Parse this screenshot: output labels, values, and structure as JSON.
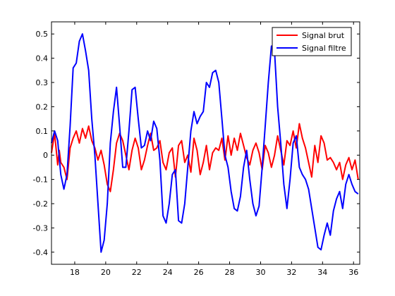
{
  "chart_data": {
    "type": "line",
    "title": "",
    "xlabel": "",
    "ylabel": "",
    "xlim": [
      16.5,
      36.4
    ],
    "ylim": [
      -0.45,
      0.55
    ],
    "xticks": [
      18,
      20,
      22,
      24,
      26,
      28,
      30,
      32,
      34,
      36
    ],
    "yticks": [
      0.5,
      0.4,
      0.3,
      0.2,
      0.1,
      0,
      -0.1,
      -0.2,
      -0.3,
      -0.4
    ],
    "xtick_labels": [
      "18",
      "20",
      "22",
      "24",
      "26",
      "28",
      "30",
      "32",
      "34",
      "36"
    ],
    "ytick_labels": [
      "0.5",
      "0.4",
      "0.3",
      "0.2",
      "0.1",
      "0",
      "-0.1",
      "-0.2",
      "-0.3",
      "-0.4"
    ],
    "grid": false,
    "legend_position": "top-right",
    "series": [
      {
        "name": "Signal brut",
        "color": "#ff0000",
        "x": [
          16.5,
          16.7,
          16.9,
          17.0,
          17.1,
          17.3,
          17.5,
          17.7,
          17.9,
          18.1,
          18.3,
          18.5,
          18.7,
          18.9,
          19.1,
          19.3,
          19.5,
          19.7,
          19.9,
          20.1,
          20.3,
          20.5,
          20.7,
          20.9,
          21.1,
          21.3,
          21.5,
          21.7,
          21.9,
          22.1,
          22.3,
          22.5,
          22.7,
          22.9,
          23.1,
          23.3,
          23.5,
          23.7,
          23.9,
          24.1,
          24.3,
          24.5,
          24.7,
          24.9,
          25.1,
          25.3,
          25.5,
          25.7,
          25.9,
          26.1,
          26.3,
          26.5,
          26.7,
          26.9,
          27.1,
          27.3,
          27.5,
          27.7,
          27.9,
          28.1,
          28.3,
          28.5,
          28.7,
          28.9,
          29.1,
          29.3,
          29.5,
          29.7,
          29.9,
          30.1,
          30.3,
          30.5,
          30.7,
          30.9,
          31.1,
          31.3,
          31.5,
          31.7,
          31.9,
          32.1,
          32.3,
          32.5,
          32.7,
          32.9,
          33.1,
          33.3,
          33.5,
          33.7,
          33.9,
          34.1,
          34.3,
          34.5,
          34.7,
          34.9,
          35.1,
          35.3,
          35.5,
          35.7,
          35.9,
          36.1,
          36.3
        ],
        "values": [
          0.01,
          0.09,
          -0.04,
          0.02,
          -0.03,
          -0.05,
          -0.1,
          0.03,
          0.07,
          0.1,
          0.05,
          0.11,
          0.07,
          0.12,
          0.06,
          0.03,
          -0.02,
          0.02,
          -0.04,
          -0.12,
          -0.15,
          -0.06,
          0.05,
          0.09,
          0.06,
          0.0,
          -0.06,
          0.02,
          0.07,
          0.03,
          -0.06,
          -0.02,
          0.04,
          0.09,
          0.02,
          0.03,
          0.06,
          -0.03,
          -0.06,
          0.01,
          0.03,
          -0.09,
          0.04,
          0.06,
          -0.03,
          0.0,
          -0.07,
          0.07,
          0.02,
          -0.08,
          -0.03,
          0.04,
          -0.06,
          0.01,
          0.03,
          0.02,
          0.07,
          -0.02,
          0.08,
          0.0,
          0.07,
          0.02,
          0.09,
          0.04,
          -0.01,
          -0.04,
          0.02,
          0.05,
          0.01,
          -0.06,
          0.04,
          0.01,
          -0.05,
          0.0,
          0.08,
          0.02,
          -0.04,
          0.06,
          0.04,
          0.1,
          0.03,
          0.13,
          0.07,
          0.03,
          -0.03,
          -0.09,
          0.04,
          -0.03,
          0.08,
          0.05,
          -0.02,
          -0.01,
          -0.03,
          -0.06,
          -0.03,
          -0.1,
          -0.04,
          -0.01,
          -0.06,
          -0.02,
          -0.1
        ]
      },
      {
        "name": "Signal filtre",
        "color": "#0000ff",
        "x": [
          16.5,
          16.7,
          16.9,
          17.1,
          17.3,
          17.5,
          17.7,
          17.9,
          18.1,
          18.3,
          18.5,
          18.7,
          18.9,
          19.1,
          19.3,
          19.5,
          19.7,
          19.9,
          20.1,
          20.3,
          20.5,
          20.7,
          20.9,
          21.1,
          21.3,
          21.5,
          21.7,
          21.9,
          22.1,
          22.3,
          22.5,
          22.7,
          22.9,
          23.1,
          23.3,
          23.5,
          23.7,
          23.9,
          24.1,
          24.3,
          24.5,
          24.7,
          24.9,
          25.1,
          25.3,
          25.5,
          25.7,
          25.9,
          26.1,
          26.3,
          26.5,
          26.7,
          26.9,
          27.1,
          27.3,
          27.5,
          27.7,
          27.9,
          28.1,
          28.3,
          28.5,
          28.7,
          28.9,
          29.1,
          29.3,
          29.5,
          29.7,
          29.9,
          30.1,
          30.3,
          30.5,
          30.7,
          30.9,
          31.1,
          31.3,
          31.5,
          31.7,
          31.9,
          32.1,
          32.3,
          32.5,
          32.7,
          32.9,
          33.1,
          33.3,
          33.5,
          33.7,
          33.9,
          34.1,
          34.3,
          34.5,
          34.7,
          34.9,
          35.1,
          35.3,
          35.5,
          35.7,
          35.9,
          36.1,
          36.3
        ],
        "values": [
          0.05,
          0.1,
          0.06,
          -0.08,
          -0.14,
          -0.08,
          0.12,
          0.36,
          0.38,
          0.47,
          0.5,
          0.43,
          0.35,
          0.15,
          0.0,
          -0.2,
          -0.4,
          -0.35,
          -0.2,
          0.05,
          0.18,
          0.28,
          0.12,
          -0.05,
          -0.05,
          0.1,
          0.27,
          0.28,
          0.15,
          0.03,
          0.04,
          0.1,
          0.06,
          0.14,
          0.11,
          -0.02,
          -0.25,
          -0.28,
          -0.2,
          -0.08,
          -0.06,
          -0.27,
          -0.28,
          -0.2,
          -0.05,
          0.1,
          0.18,
          0.13,
          0.16,
          0.18,
          0.3,
          0.28,
          0.34,
          0.35,
          0.3,
          0.15,
          0.0,
          -0.05,
          -0.15,
          -0.22,
          -0.23,
          -0.17,
          -0.05,
          0.02,
          -0.1,
          -0.2,
          -0.25,
          -0.21,
          -0.05,
          0.12,
          0.3,
          0.45,
          0.43,
          0.2,
          0.05,
          -0.12,
          -0.22,
          -0.1,
          0.05,
          0.08,
          -0.05,
          -0.08,
          -0.1,
          -0.14,
          -0.22,
          -0.3,
          -0.38,
          -0.39,
          -0.33,
          -0.28,
          -0.33,
          -0.23,
          -0.18,
          -0.15,
          -0.22,
          -0.12,
          -0.08,
          -0.12,
          -0.15,
          -0.16
        ]
      }
    ]
  }
}
